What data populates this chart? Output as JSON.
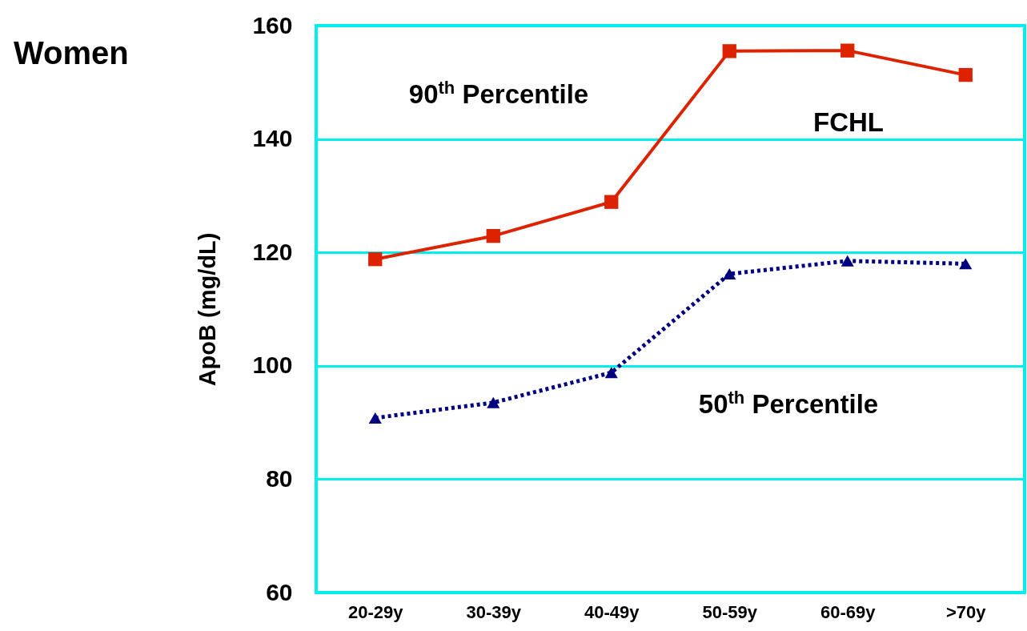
{
  "chart_data": {
    "type": "line",
    "title": "Women",
    "ylabel": "ApoB (mg/dL)",
    "categories": [
      "20-29y",
      "30-39y",
      "40-49y",
      "50-59y",
      "60-69y",
      ">70y"
    ],
    "series": [
      {
        "name": "90$^{th}$ Percentile",
        "color": "#dd2200",
        "marker": "square",
        "line_style": "solid",
        "values": [
          118.8,
          122.9,
          128.9,
          155.5,
          155.6,
          151.3
        ]
      },
      {
        "name": "50$^{th}$ Percentile",
        "color": "#000080",
        "marker": "triangle",
        "line_style": "dotted",
        "values": [
          90.8,
          93.5,
          98.8,
          116.2,
          118.5,
          118
        ]
      }
    ],
    "annotations": [
      "FCHL"
    ],
    "ylim": [
      60,
      160
    ],
    "yticks": [
      60,
      80,
      100,
      120,
      140,
      160
    ],
    "grid": "y"
  }
}
